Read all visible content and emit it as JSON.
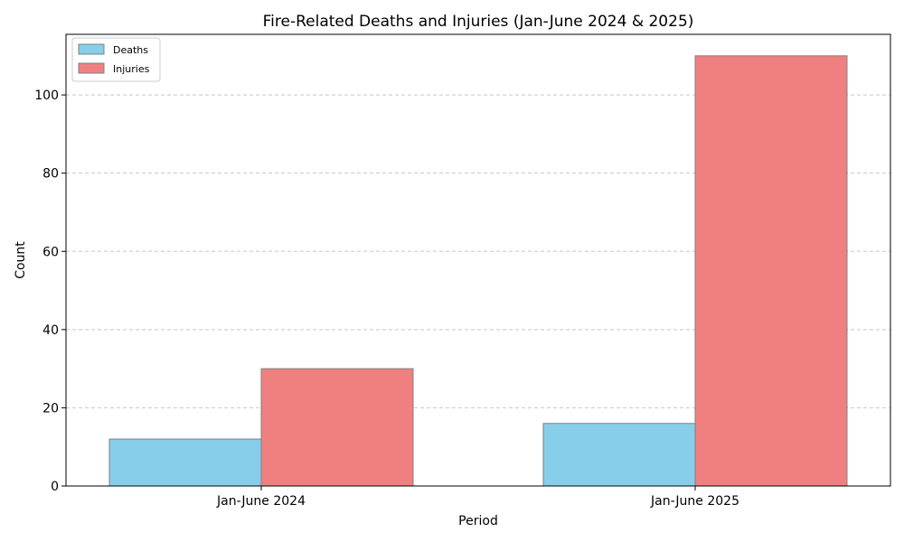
{
  "chart_data": {
    "type": "bar",
    "title": "Fire-Related Deaths and Injuries (Jan-June 2024 & 2025)",
    "xlabel": "Period",
    "ylabel": "Count",
    "categories": [
      "Jan-June 2024",
      "Jan-June 2025"
    ],
    "series": [
      {
        "name": "Deaths",
        "values": [
          12,
          16
        ],
        "color": "#87ceeb"
      },
      {
        "name": "Injuries",
        "values": [
          30,
          110
        ],
        "color": "#f08080"
      }
    ],
    "ylim": [
      0,
      115.5
    ],
    "yticks": [
      0,
      20,
      40,
      60,
      80,
      100
    ],
    "grid": "y-dashed",
    "legend_position": "top-left",
    "bar_edge_color": "#808080"
  }
}
